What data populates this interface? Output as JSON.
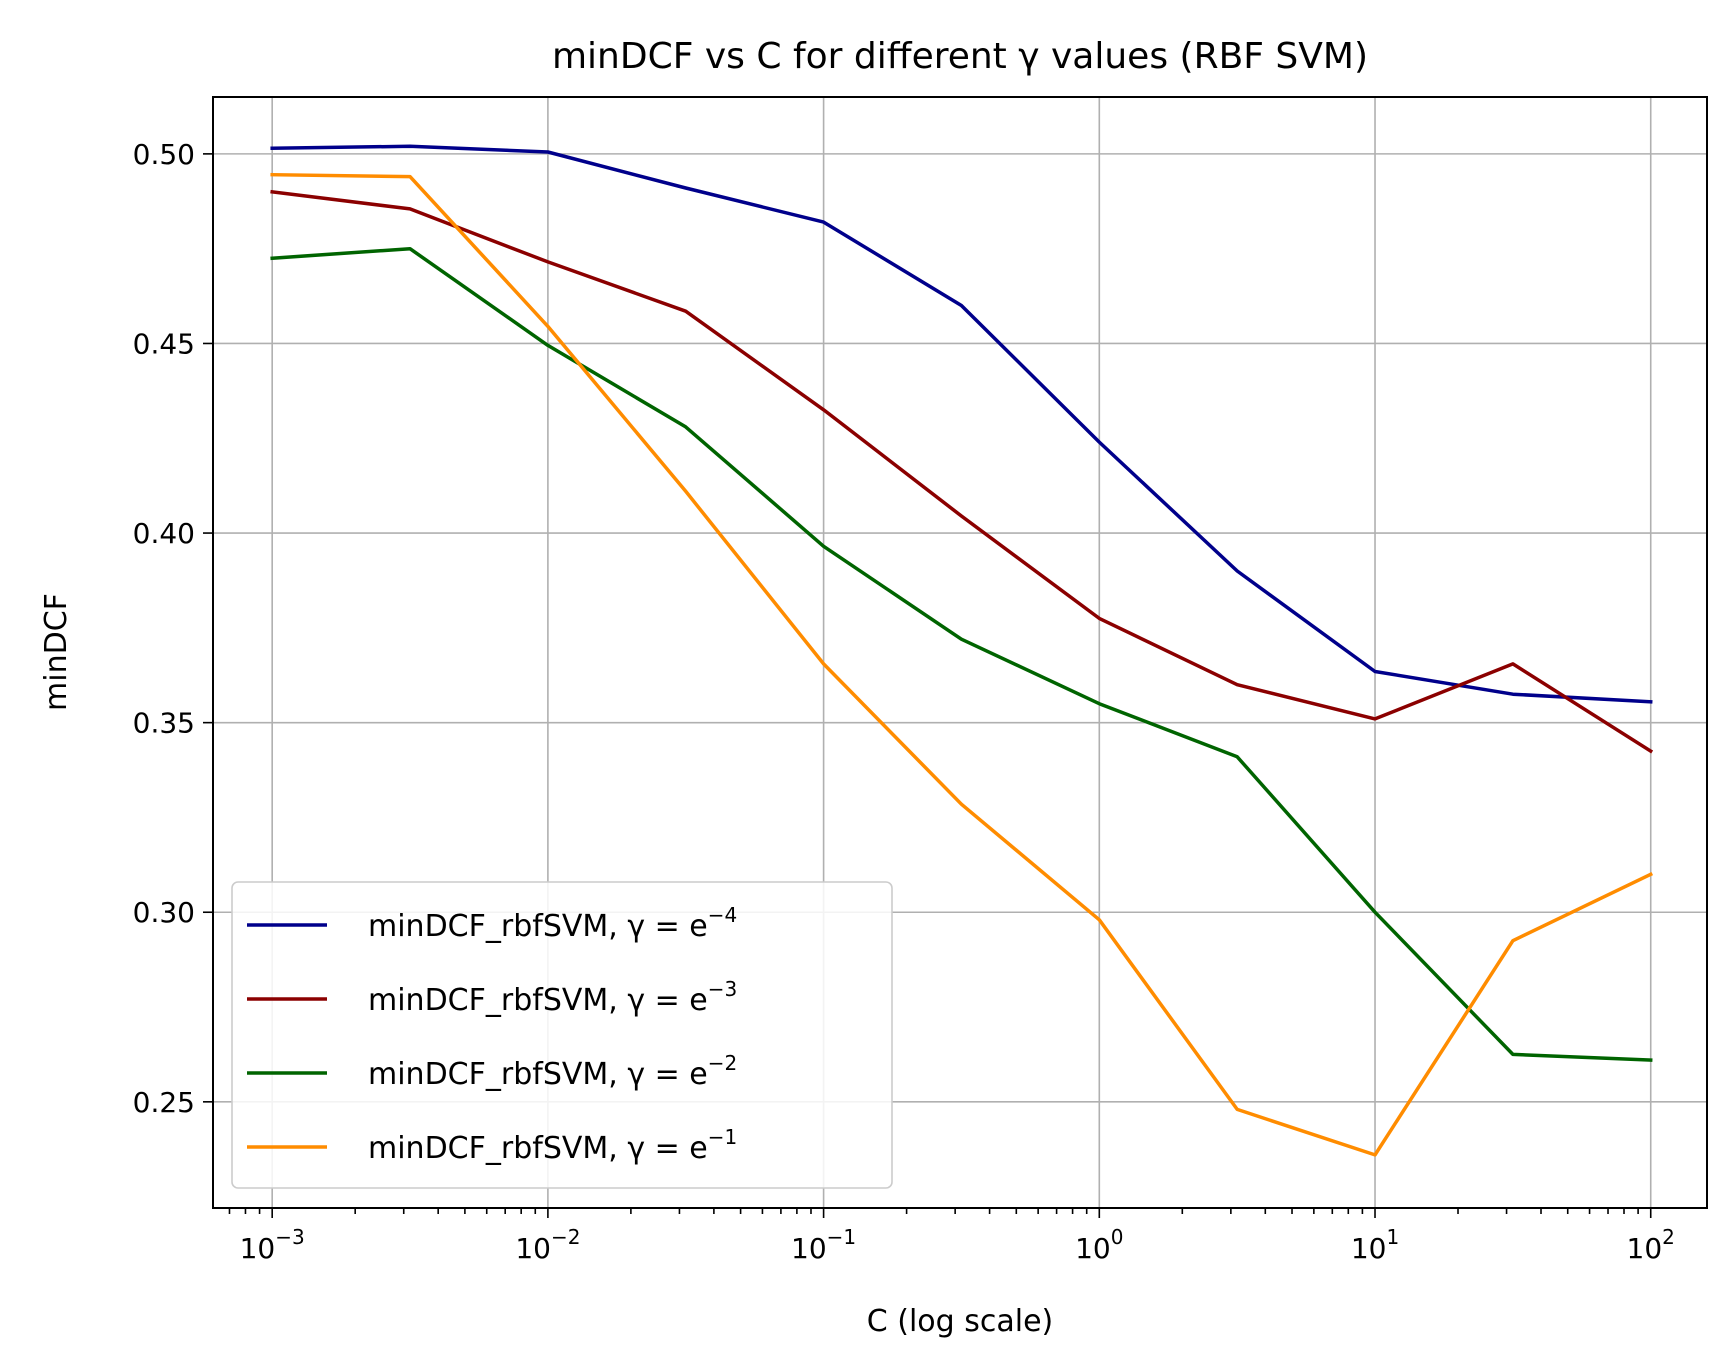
{
  "chart_data": {
    "type": "line",
    "title": "minDCF vs C for different γ values (RBF SVM)",
    "xlabel": "C (log scale)",
    "ylabel": "minDCF",
    "x_scale": "log",
    "xlim": [
      0.00061,
      160
    ],
    "ylim": [
      0.222,
      0.515
    ],
    "grid": true,
    "legend_position": "lower-left",
    "x": [
      0.001,
      0.003162,
      0.01,
      0.03162,
      0.1,
      0.3162,
      1,
      3.162,
      10,
      31.62,
      100
    ],
    "x_ticks": [
      {
        "value": 0.001,
        "base": "10",
        "exp": "−3"
      },
      {
        "value": 0.01,
        "base": "10",
        "exp": "−2"
      },
      {
        "value": 0.1,
        "base": "10",
        "exp": "−1"
      },
      {
        "value": 1,
        "base": "10",
        "exp": "0"
      },
      {
        "value": 10,
        "base": "10",
        "exp": "1"
      },
      {
        "value": 100,
        "base": "10",
        "exp": "2"
      }
    ],
    "y_ticks": [
      {
        "value": 0.25,
        "label": "0.25"
      },
      {
        "value": 0.3,
        "label": "0.30"
      },
      {
        "value": 0.35,
        "label": "0.35"
      },
      {
        "value": 0.4,
        "label": "0.40"
      },
      {
        "value": 0.45,
        "label": "0.45"
      },
      {
        "value": 0.5,
        "label": "0.50"
      }
    ],
    "series": [
      {
        "name": "minDCF_rbfSVM, γ = e⁻⁴",
        "legend_text": "minDCF_rbfSVM, γ = e",
        "legend_exp": "−4",
        "color": "#00008b",
        "values": [
          0.5015,
          0.502,
          0.5005,
          0.491,
          0.482,
          0.46,
          0.424,
          0.39,
          0.3635,
          0.3575,
          0.3555
        ]
      },
      {
        "name": "minDCF_rbfSVM, γ = e⁻³",
        "legend_text": "minDCF_rbfSVM, γ = e",
        "legend_exp": "−3",
        "color": "#8b0000",
        "values": [
          0.49,
          0.4855,
          0.4715,
          0.4585,
          0.4325,
          0.4045,
          0.3775,
          0.36,
          0.351,
          0.3655,
          0.3425
        ]
      },
      {
        "name": "minDCF_rbfSVM, γ = e⁻²",
        "legend_text": "minDCF_rbfSVM, γ = e",
        "legend_exp": "−2",
        "color": "#006400",
        "values": [
          0.4725,
          0.475,
          0.4495,
          0.428,
          0.3965,
          0.372,
          0.355,
          0.341,
          0.3,
          0.2625,
          0.261
        ]
      },
      {
        "name": "minDCF_rbfSVM, γ = e⁻¹",
        "legend_text": "minDCF_rbfSVM, γ = e",
        "legend_exp": "−1",
        "color": "#ff8c00",
        "values": [
          0.4945,
          0.494,
          0.4545,
          0.411,
          0.3655,
          0.3285,
          0.298,
          0.248,
          0.236,
          0.2925,
          0.31
        ]
      }
    ]
  }
}
